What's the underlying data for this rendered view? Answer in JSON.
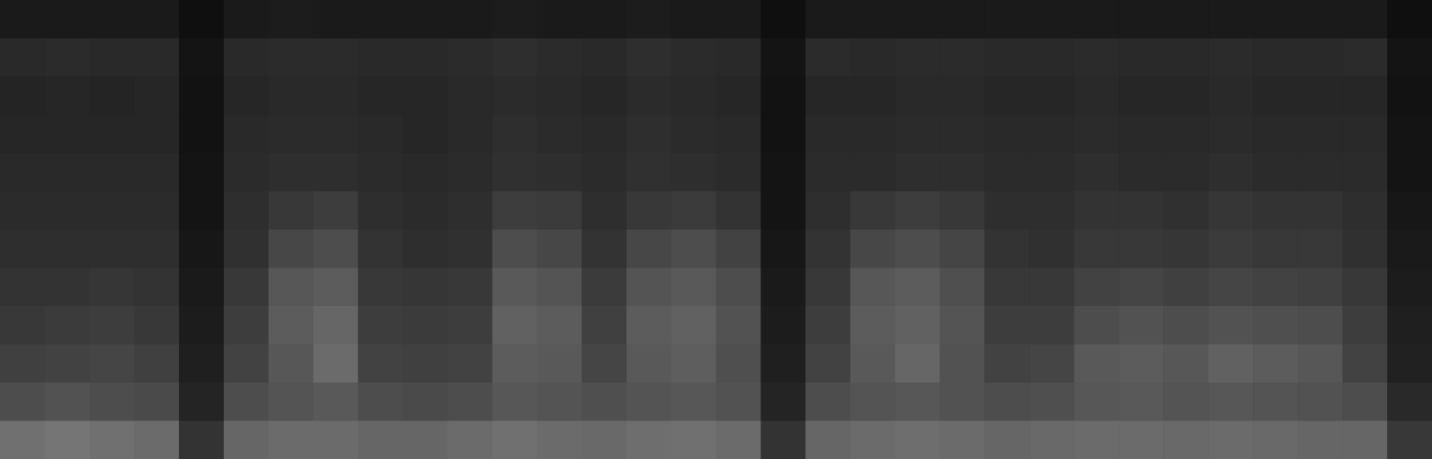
{
  "chart_data": {
    "type": "heatmap",
    "xlim": [
      0,
      32
    ],
    "ylim": [
      0,
      12
    ],
    "clim": [
      0,
      100
    ],
    "color": "#ffffff",
    "tick_labels": false,
    "cells": [
      [
        10,
        10,
        10,
        10,
        6,
        10,
        11,
        10,
        10,
        10,
        10,
        11,
        10,
        10,
        11,
        10,
        10,
        6,
        10,
        10,
        10,
        10,
        10,
        10,
        10,
        10,
        10,
        10,
        10,
        10,
        10,
        6
      ],
      [
        16,
        17,
        16,
        16,
        8,
        16,
        17,
        17,
        16,
        16,
        17,
        18,
        17,
        16,
        18,
        17,
        16,
        8,
        17,
        16,
        17,
        17,
        16,
        16,
        17,
        16,
        16,
        17,
        16,
        16,
        17,
        8
      ],
      [
        14,
        15,
        14,
        15,
        7,
        15,
        16,
        16,
        15,
        15,
        16,
        17,
        16,
        15,
        17,
        16,
        15,
        7,
        15,
        15,
        16,
        16,
        15,
        15,
        16,
        15,
        15,
        16,
        15,
        15,
        15,
        7
      ],
      [
        15,
        15,
        15,
        15,
        7,
        16,
        17,
        17,
        16,
        15,
        16,
        18,
        17,
        16,
        18,
        17,
        16,
        7,
        16,
        16,
        17,
        17,
        16,
        16,
        17,
        16,
        16,
        17,
        16,
        16,
        16,
        8
      ],
      [
        16,
        16,
        16,
        16,
        8,
        17,
        18,
        18,
        17,
        16,
        17,
        19,
        18,
        17,
        19,
        18,
        17,
        8,
        17,
        17,
        18,
        18,
        17,
        17,
        18,
        17,
        17,
        18,
        17,
        17,
        17,
        8
      ],
      [
        17,
        17,
        17,
        17,
        8,
        18,
        22,
        24,
        18,
        17,
        18,
        24,
        23,
        18,
        22,
        23,
        20,
        8,
        18,
        22,
        24,
        22,
        18,
        18,
        20,
        20,
        19,
        21,
        20,
        20,
        18,
        9
      ],
      [
        18,
        18,
        18,
        18,
        9,
        19,
        28,
        30,
        20,
        18,
        19,
        30,
        28,
        20,
        28,
        30,
        26,
        9,
        20,
        28,
        30,
        27,
        20,
        19,
        22,
        22,
        21,
        23,
        22,
        22,
        19,
        10
      ],
      [
        20,
        20,
        21,
        20,
        10,
        22,
        34,
        36,
        22,
        21,
        22,
        35,
        33,
        23,
        33,
        35,
        30,
        10,
        22,
        34,
        36,
        31,
        22,
        22,
        26,
        27,
        25,
        27,
        26,
        25,
        22,
        11
      ],
      [
        22,
        23,
        24,
        22,
        11,
        24,
        36,
        40,
        24,
        23,
        24,
        38,
        36,
        25,
        36,
        38,
        32,
        11,
        24,
        36,
        38,
        33,
        24,
        24,
        30,
        32,
        30,
        32,
        31,
        30,
        24,
        12
      ],
      [
        25,
        26,
        27,
        25,
        12,
        26,
        34,
        42,
        26,
        25,
        26,
        36,
        35,
        27,
        35,
        37,
        31,
        12,
        26,
        35,
        40,
        32,
        26,
        27,
        35,
        36,
        34,
        38,
        36,
        34,
        26,
        13
      ],
      [
        30,
        32,
        30,
        29,
        14,
        30,
        33,
        35,
        30,
        29,
        30,
        34,
        33,
        31,
        33,
        34,
        32,
        14,
        30,
        33,
        34,
        32,
        30,
        31,
        34,
        35,
        33,
        34,
        33,
        32,
        30,
        16
      ],
      [
        44,
        46,
        44,
        42,
        20,
        40,
        42,
        42,
        40,
        40,
        42,
        44,
        42,
        41,
        43,
        44,
        42,
        20,
        40,
        42,
        43,
        42,
        40,
        41,
        42,
        42,
        41,
        42,
        41,
        40,
        40,
        22
      ]
    ]
  }
}
